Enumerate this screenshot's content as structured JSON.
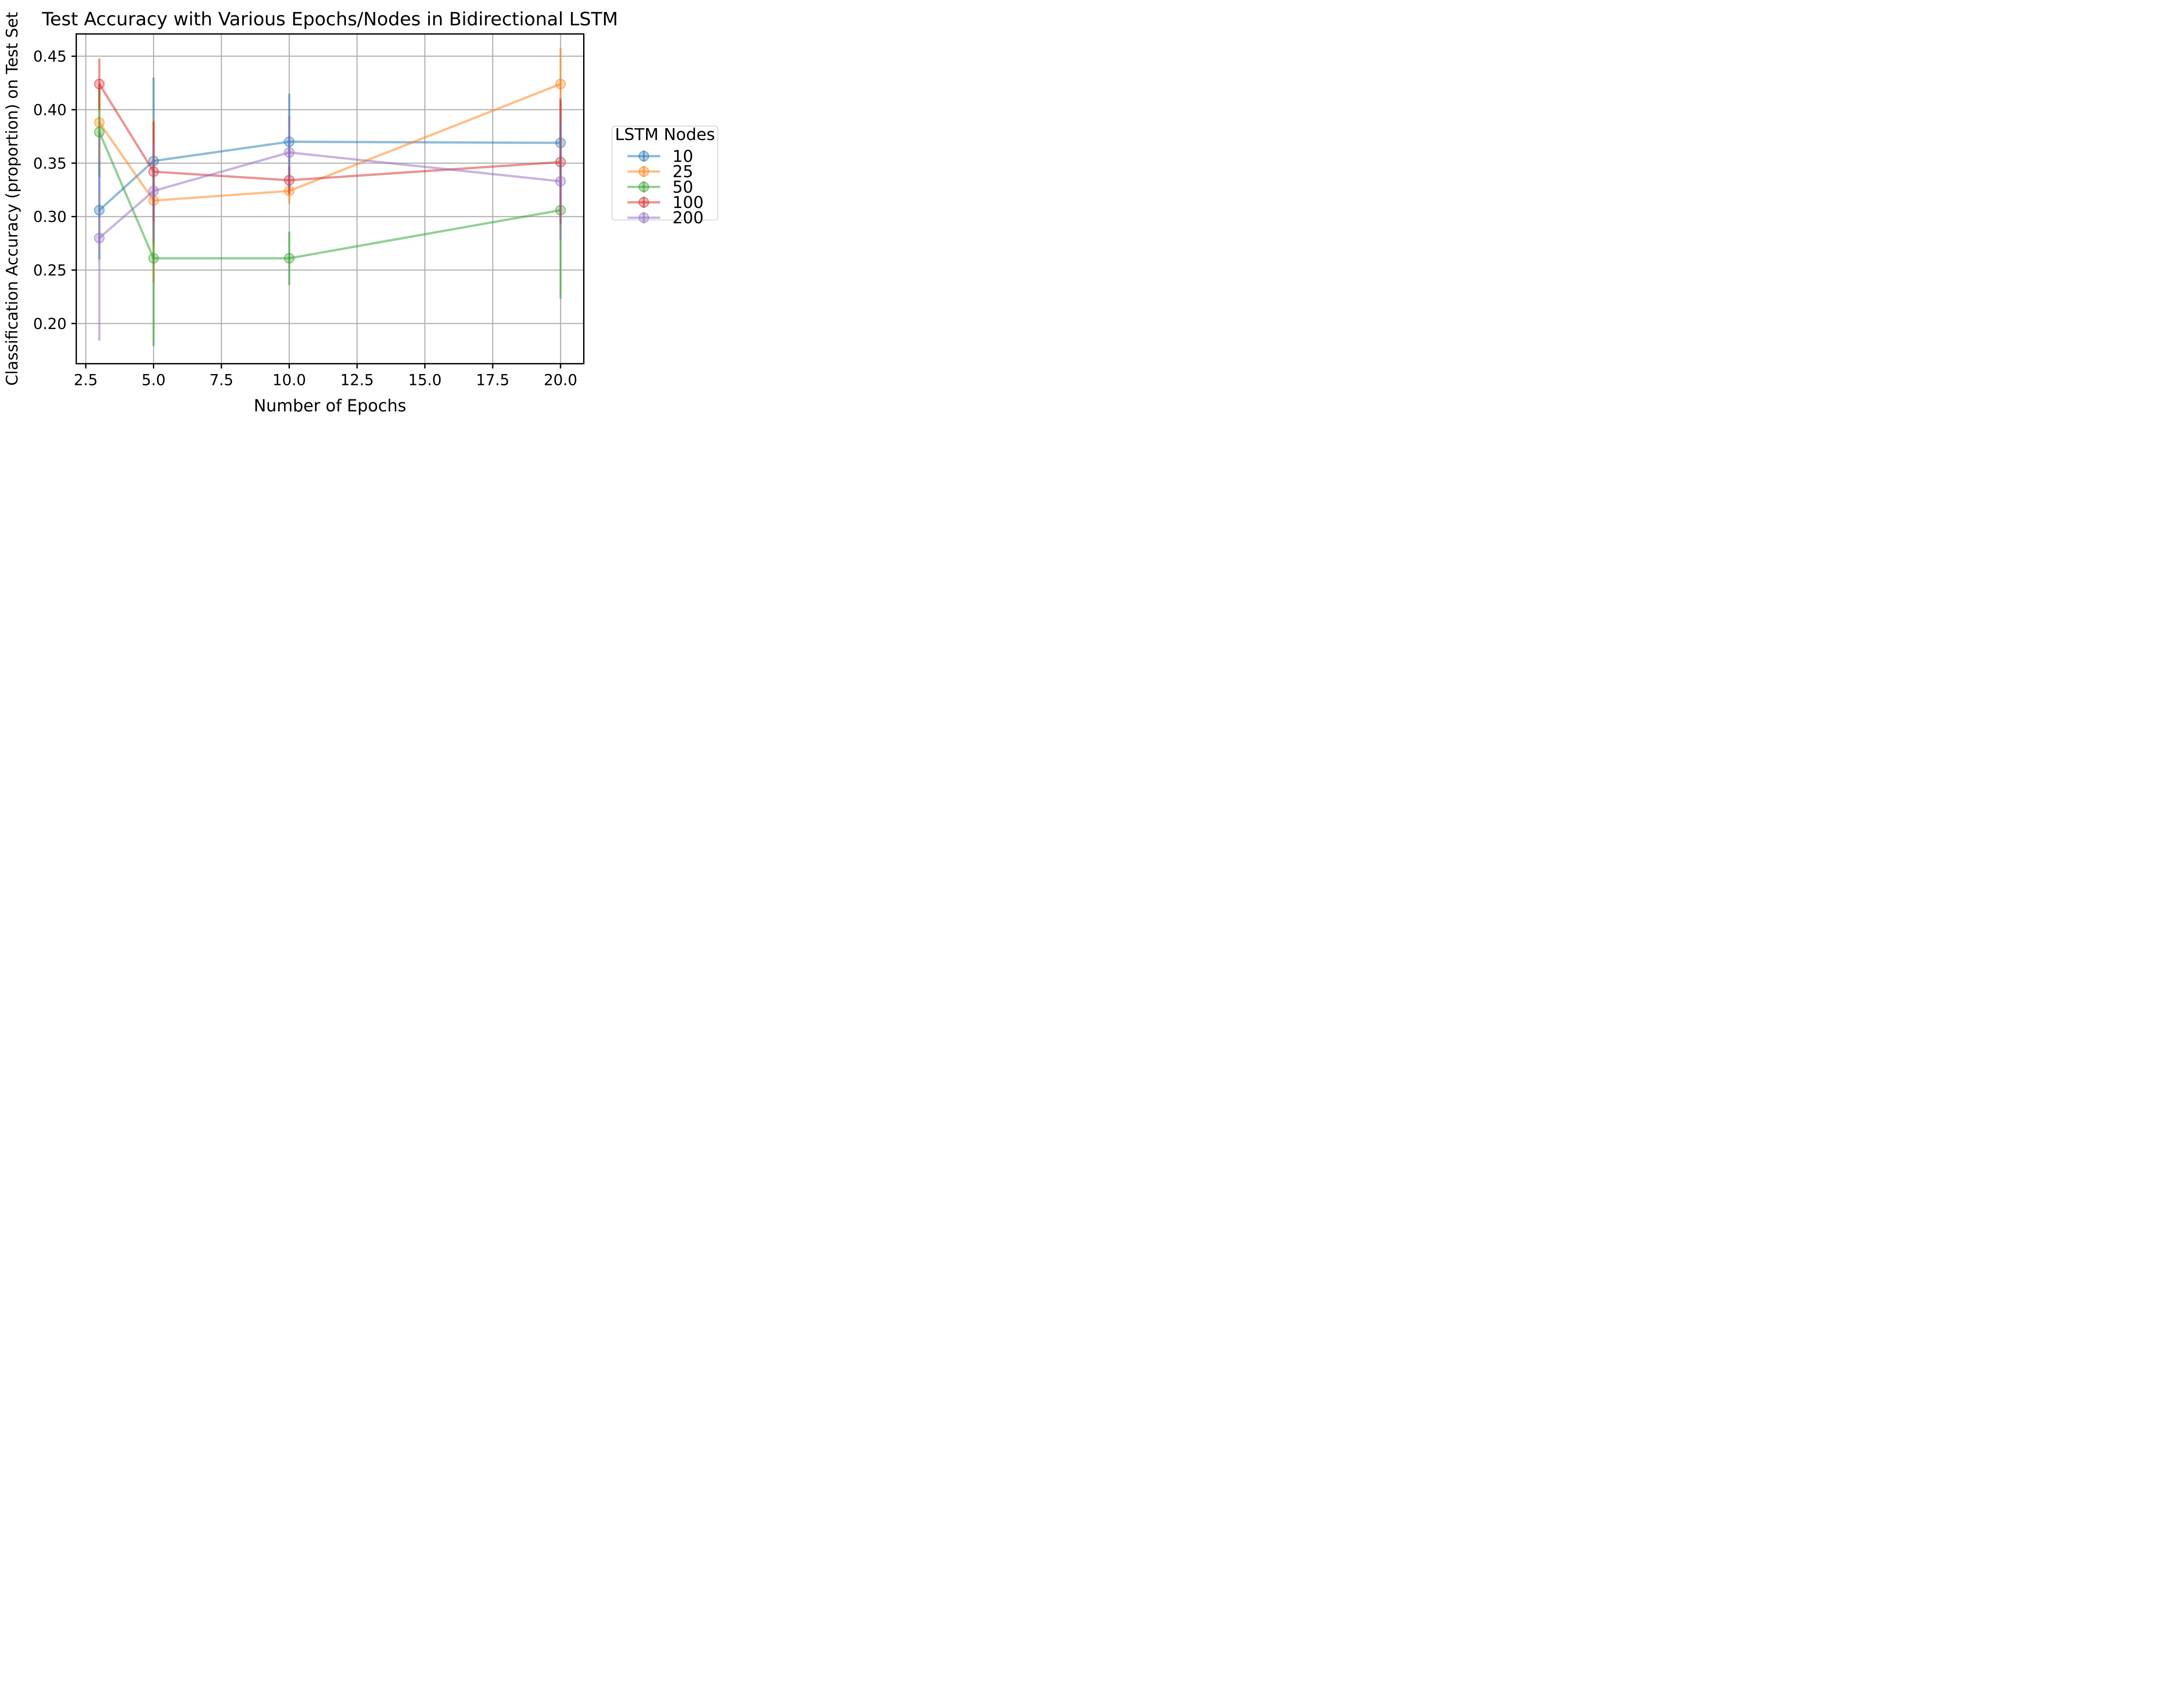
{
  "chart_data": {
    "type": "line",
    "title": "Test Accuracy with Various Epochs/Nodes in Bidirectional LSTM",
    "xlabel": "Number of Epochs",
    "ylabel": "Classification Accuracy (proportion) on Test Set",
    "x": [
      3,
      5,
      10,
      20
    ],
    "xticks": [
      2.5,
      5.0,
      7.5,
      10.0,
      12.5,
      15.0,
      17.5,
      20.0
    ],
    "xtick_labels": [
      "2.5",
      "5.0",
      "7.5",
      "10.0",
      "12.5",
      "15.0",
      "17.5",
      "20.0"
    ],
    "yticks": [
      0.2,
      0.25,
      0.3,
      0.35,
      0.4,
      0.45
    ],
    "ytick_labels": [
      "0.20",
      "0.25",
      "0.30",
      "0.35",
      "0.40",
      "0.45"
    ],
    "xlim": [
      2.15,
      20.86
    ],
    "ylim": [
      0.162,
      0.471
    ],
    "grid": true,
    "grid_color": "#b0b0b0",
    "spine_color": "#000000",
    "series_alpha": 0.5,
    "legend": {
      "title": "LSTM Nodes",
      "position": "right",
      "entries": [
        "10",
        "25",
        "50",
        "100",
        "200"
      ]
    },
    "series": [
      {
        "name": "10",
        "color": "#1f77b4",
        "values": [
          0.306,
          0.352,
          0.37,
          0.369
        ],
        "errors": [
          0.046,
          0.078,
          0.045,
          0.042
        ]
      },
      {
        "name": "25",
        "color": "#ff7f0e",
        "values": [
          0.388,
          0.315,
          0.324,
          0.424
        ],
        "errors": [
          0.036,
          0.077,
          0.012,
          0.034
        ]
      },
      {
        "name": "50",
        "color": "#2ca02c",
        "values": [
          0.379,
          0.261,
          0.261,
          0.306
        ],
        "errors": [
          0.042,
          0.082,
          0.025,
          0.083
        ]
      },
      {
        "name": "100",
        "color": "#d62728",
        "values": [
          0.424,
          0.342,
          0.334,
          0.351
        ],
        "errors": [
          0.024,
          0.047,
          0.013,
          0.058
        ]
      },
      {
        "name": "200",
        "color": "#9467bd",
        "values": [
          0.28,
          0.324,
          0.36,
          0.333
        ],
        "errors": [
          0.096,
          0.045,
          0.034,
          0.055
        ]
      }
    ]
  }
}
